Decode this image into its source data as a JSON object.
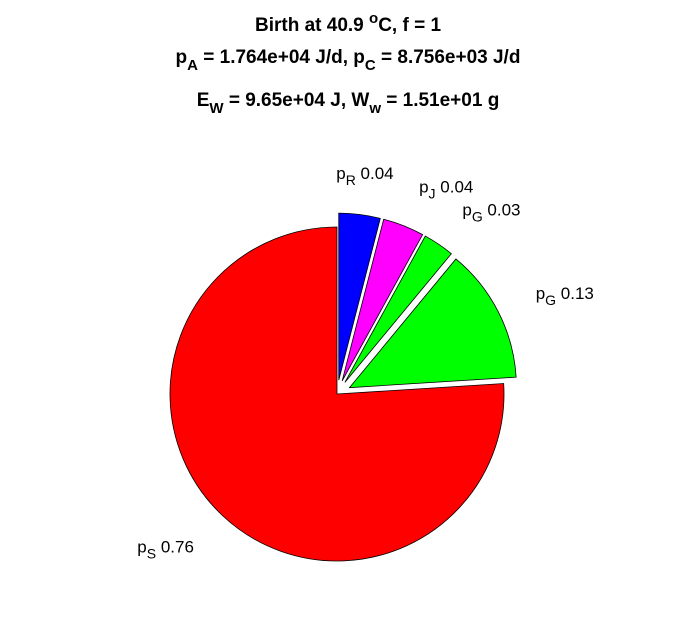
{
  "chart_data": {
    "type": "pie",
    "title_lines": [
      [
        {
          "t": "Birth at 40.9 "
        },
        {
          "t": "o",
          "sup": true
        },
        {
          "t": "C, f = 1"
        }
      ],
      [
        {
          "t": "p"
        },
        {
          "t": "A",
          "sub": true
        },
        {
          "t": " = 1.764e+04 J/d, p"
        },
        {
          "t": "C",
          "sub": true
        },
        {
          "t": " = 8.756e+03 J/d"
        }
      ],
      [
        {
          "t": "E"
        },
        {
          "t": "W",
          "sub": true
        },
        {
          "t": " = 9.65e+04 J, W"
        },
        {
          "t": "w",
          "sub": true
        },
        {
          "t": " = 1.51e+01 g"
        }
      ]
    ],
    "slices": [
      {
        "symbol": "p",
        "sub": "S",
        "value": 0.76,
        "label": "0.76",
        "color": "#ff0000",
        "exploded": false
      },
      {
        "symbol": "p",
        "sub": "G",
        "value": 0.13,
        "label": "0.13",
        "color": "#00ff00",
        "exploded": true
      },
      {
        "symbol": "p",
        "sub": "G",
        "value": 0.03,
        "label": "0.03",
        "color": "#00ff00",
        "exploded": true
      },
      {
        "symbol": "p",
        "sub": "J",
        "value": 0.04,
        "label": "0.04",
        "color": "#ff00ff",
        "exploded": true
      },
      {
        "symbol": "p",
        "sub": "R",
        "value": 0.04,
        "label": "0.04",
        "color": "#0000ff",
        "exploded": true
      }
    ],
    "start_angle_deg": 90,
    "direction": "clockwise",
    "legend": "none"
  }
}
